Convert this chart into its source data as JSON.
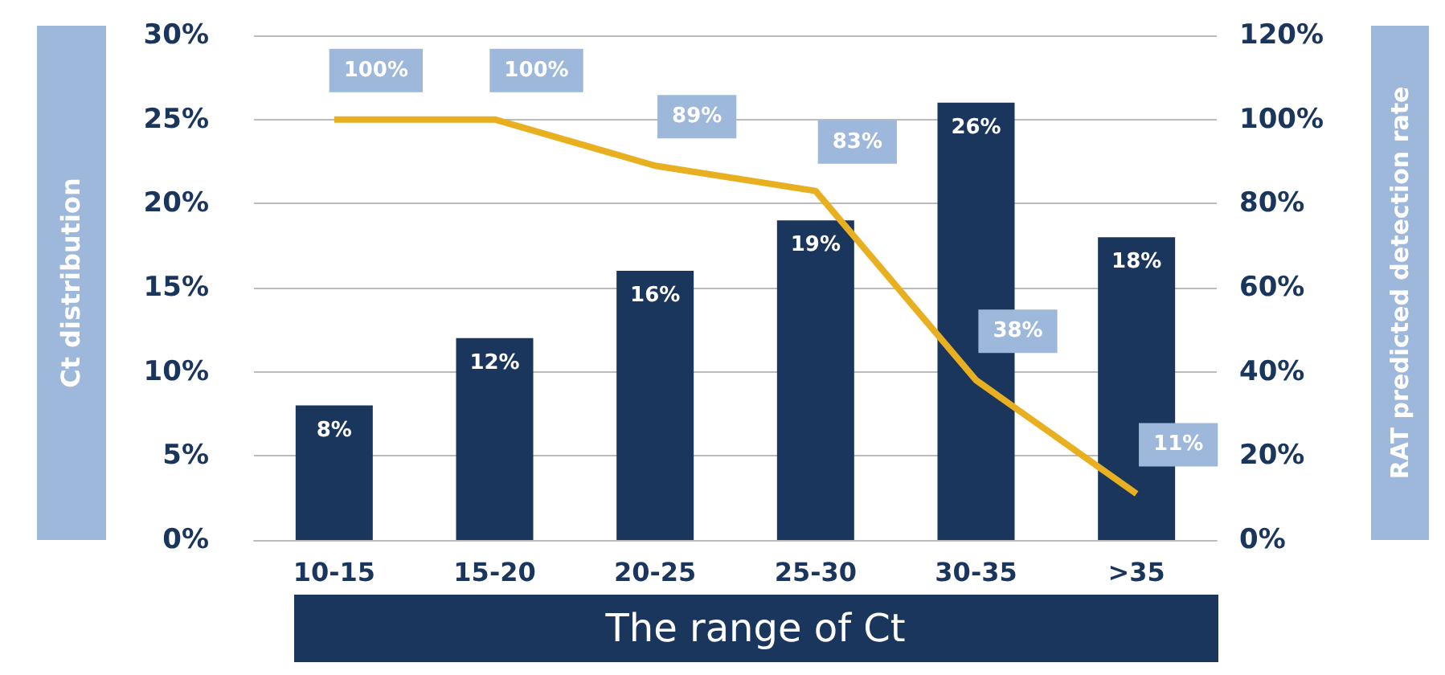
{
  "chart_data": {
    "type": "bar",
    "xlabel": "The range of Ct",
    "ylabel": "Ct distribution",
    "y2label": "RAT predicted detection rate",
    "categories": [
      "10-15",
      "15-20",
      "20-25",
      "25-30",
      "30-35",
      ">35"
    ],
    "series": [
      {
        "color": "#1b365d",
        "values": [
          8,
          12,
          16,
          19,
          26,
          18
        ],
        "value_labels": [
          "8%",
          "12%",
          "16%",
          "19%",
          "26%",
          "18%"
        ]
      },
      {
        "type": "line",
        "axis": "y2",
        "color": "#e8b020",
        "values": [
          100,
          100,
          89,
          83,
          38,
          11
        ],
        "value_labels": [
          "100%",
          "100%",
          "89%",
          "83%",
          "38%",
          "11%"
        ]
      }
    ],
    "marker": "none",
    "ylim": [
      0,
      30
    ],
    "yticks": [
      {
        "value": 0,
        "label": "0%"
      },
      {
        "value": 5,
        "label": "5%"
      },
      {
        "value": 10,
        "label": "10%"
      },
      {
        "value": 15,
        "label": "15%"
      },
      {
        "value": 20,
        "label": "20%"
      },
      {
        "value": 25,
        "label": "25%"
      },
      {
        "value": 30,
        "label": "30%"
      }
    ],
    "y2lim": [
      0,
      120
    ],
    "y2ticks": [
      {
        "value": 0,
        "label": "0%"
      },
      {
        "value": 20,
        "label": "20%"
      },
      {
        "value": 40,
        "label": "40%"
      },
      {
        "value": 60,
        "label": "60%"
      },
      {
        "value": 80,
        "label": "80%"
      },
      {
        "value": 100,
        "label": "100%"
      },
      {
        "value": 120,
        "label": "120%"
      }
    ],
    "grid": "y"
  }
}
